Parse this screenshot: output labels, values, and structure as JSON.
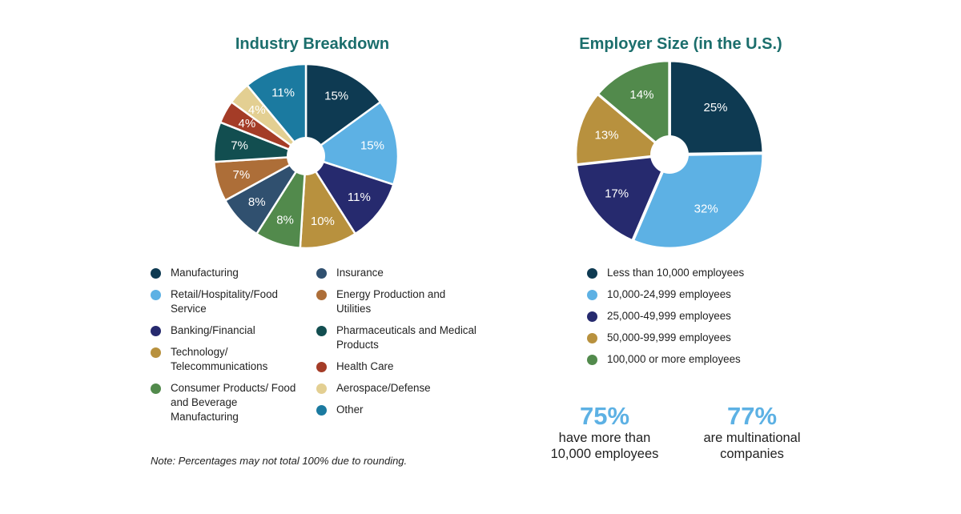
{
  "chart_data": [
    {
      "type": "pie",
      "title": "Industry Breakdown",
      "categories": [
        "Manufacturing",
        "Retail/Hospitality/Food Service",
        "Banking/Financial",
        "Technology/ Telecommunications",
        "Consumer Products/ Food and Beverage Manufacturing",
        "Insurance",
        "Energy Production and Utilities",
        "Pharmaceuticals and Medical Products",
        "Health Care",
        "Aerospace/Defense",
        "Other"
      ],
      "values": [
        15,
        15,
        11,
        10,
        8,
        8,
        7,
        7,
        4,
        4,
        11
      ],
      "labels": [
        "15%",
        "15%",
        "11%",
        "10%",
        "8%",
        "8%",
        "7%",
        "7%",
        "4%",
        "4%",
        "11%"
      ],
      "colors": [
        "#0e3a52",
        "#5db1e4",
        "#262a6e",
        "#b8913e",
        "#528a4c",
        "#30506f",
        "#ad6e38",
        "#124e50",
        "#a43c27",
        "#e3cf92",
        "#1b7aa0"
      ],
      "legend": "below",
      "note": "Note: Percentages may not total 100% due to rounding."
    },
    {
      "type": "pie",
      "title": "Employer Size (in the U.S.)",
      "categories": [
        "Less than 10,000 employees",
        "10,000-24,999 employees",
        "25,000-49,999 employees",
        "50,000-99,999 employees",
        "100,000 or more employees"
      ],
      "values": [
        25,
        32,
        17,
        13,
        14
      ],
      "labels": [
        "25%",
        "32%",
        "17%",
        "13%",
        "14%"
      ],
      "colors": [
        "#0e3a52",
        "#5db1e4",
        "#262a6e",
        "#b8913e",
        "#528a4c"
      ],
      "legend": "below"
    }
  ],
  "stats": [
    {
      "value": "75%",
      "line1": "have more than",
      "line2": "10,000 employees"
    },
    {
      "value": "77%",
      "line1": "are multinational",
      "line2": "companies"
    }
  ]
}
